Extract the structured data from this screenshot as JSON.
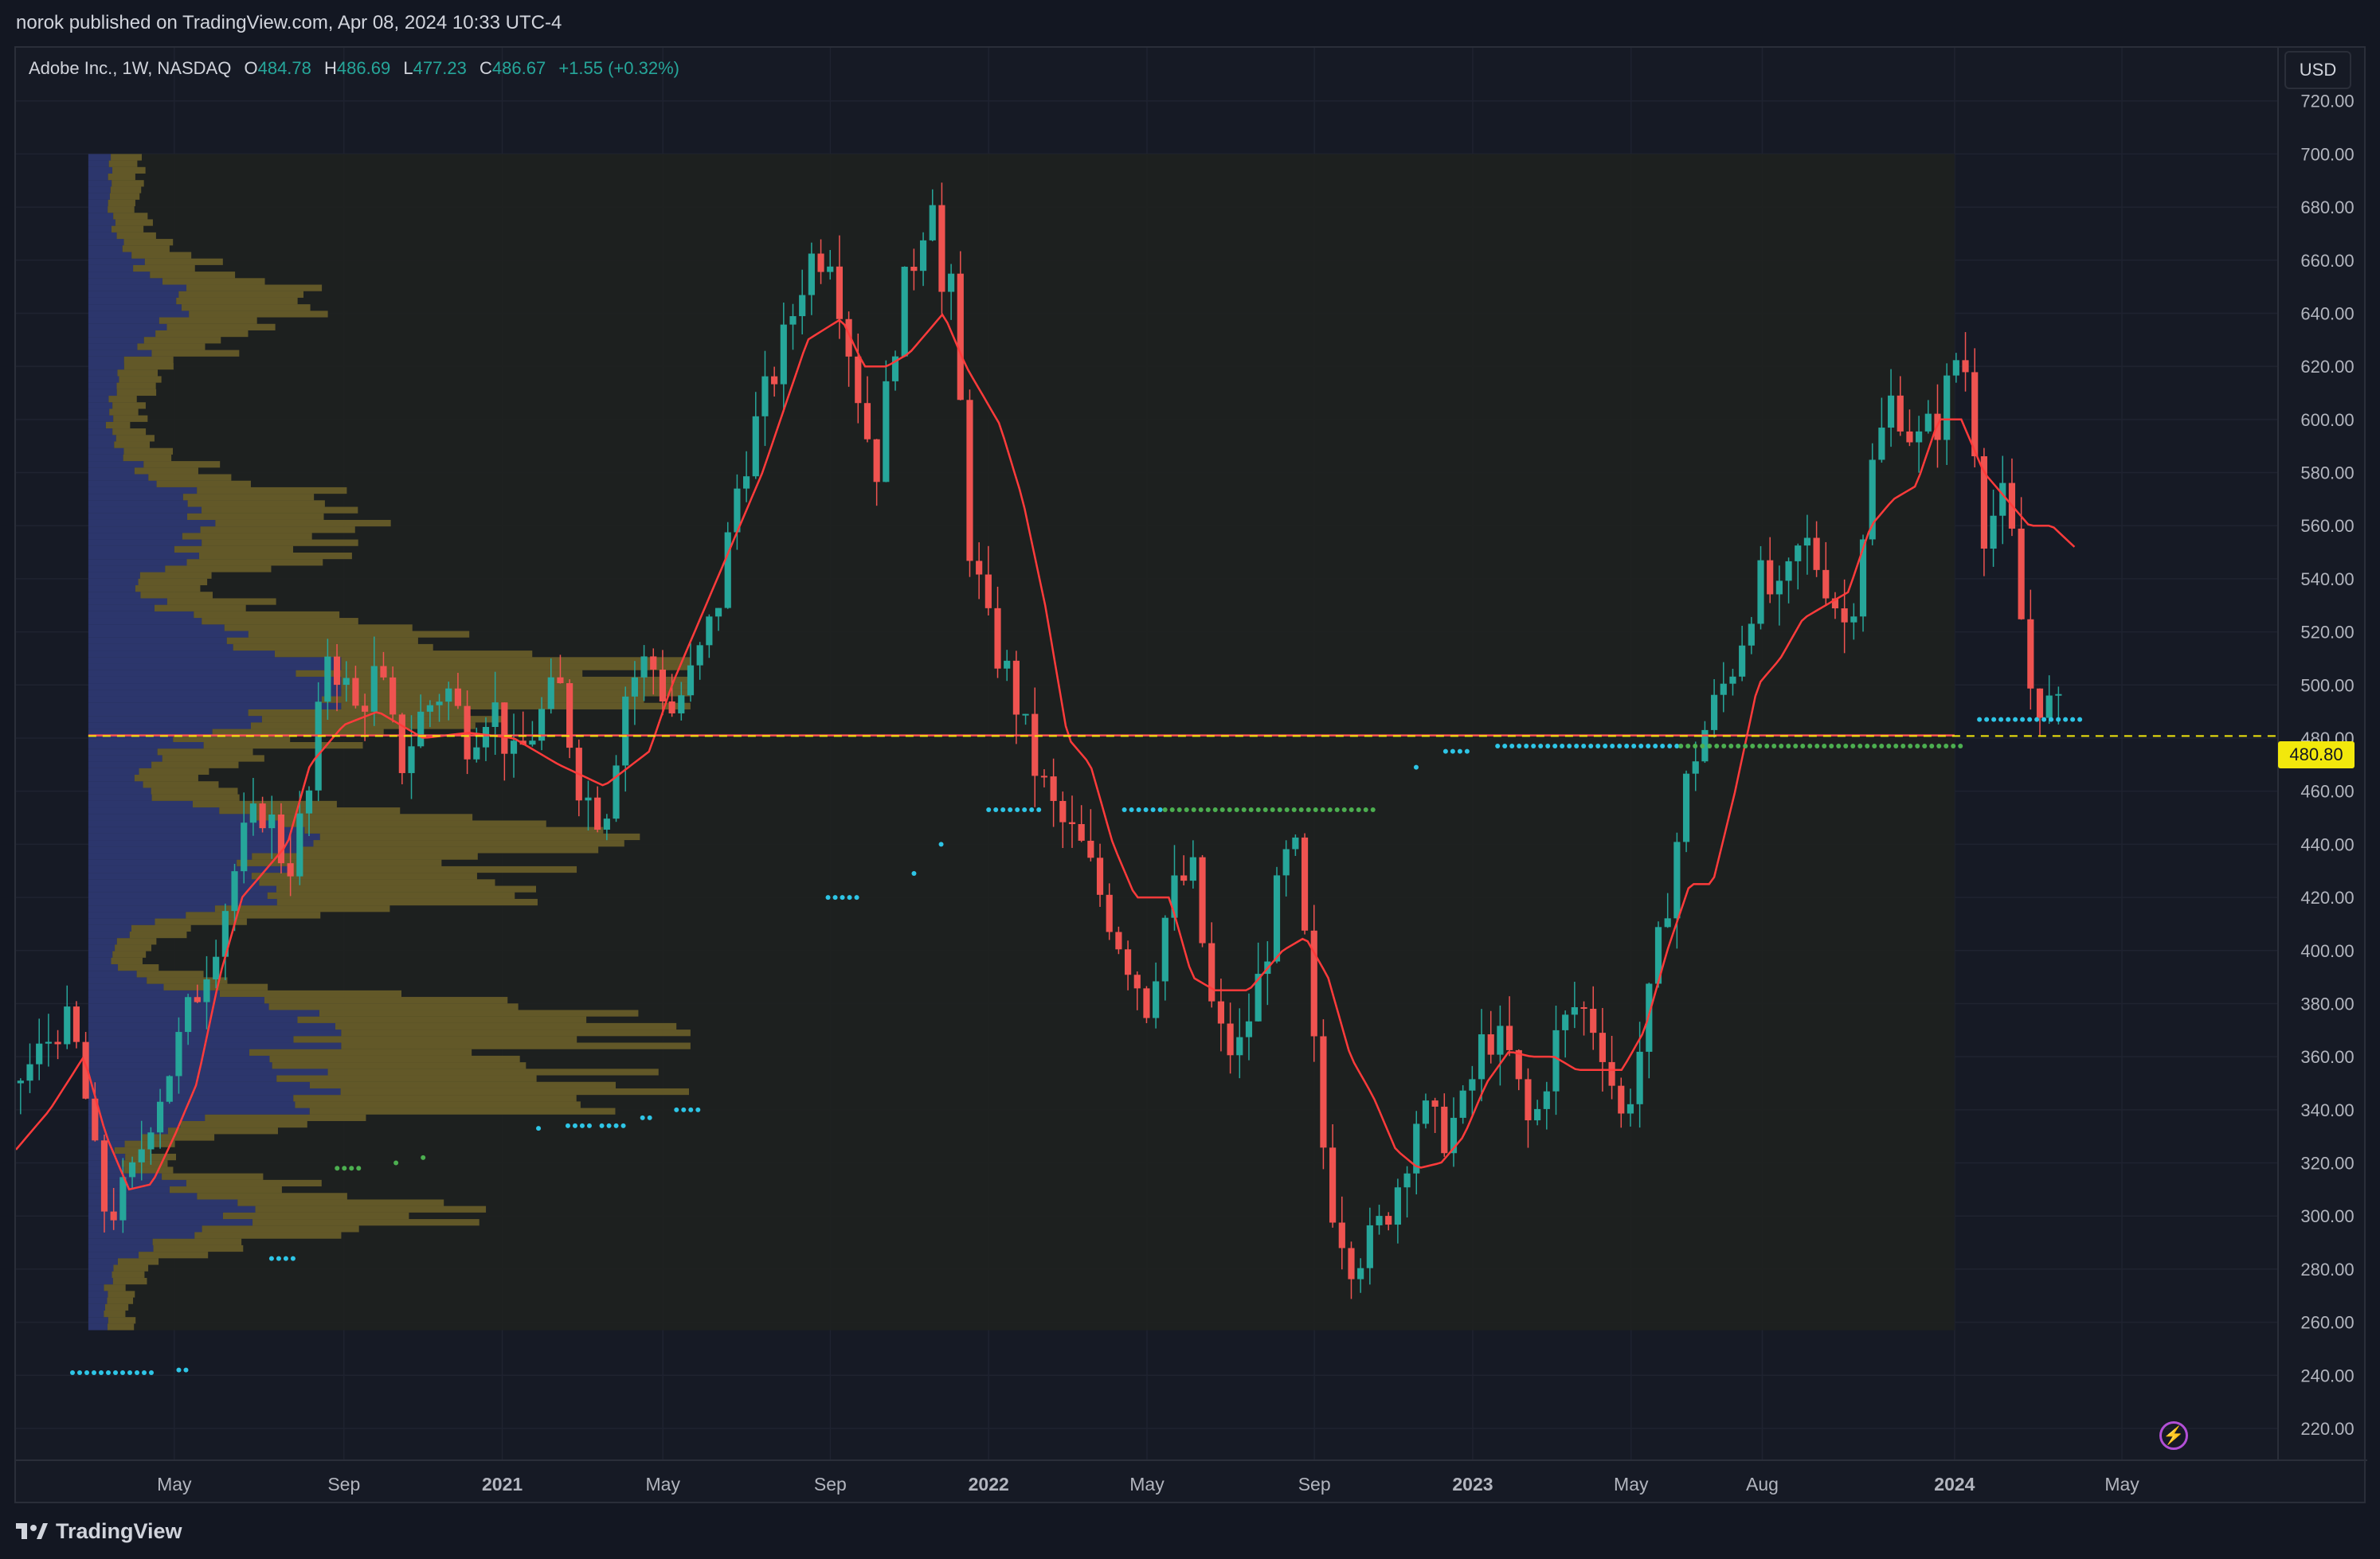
{
  "header": {
    "published_text": "norok published on TradingView.com, Apr 08, 2024 10:33 UTC-4"
  },
  "legend": {
    "symbol": "Adobe Inc., 1W, NASDAQ",
    "o_label": "O",
    "o_value": "484.78",
    "h_label": "H",
    "h_value": "486.69",
    "l_label": "L",
    "l_value": "477.23",
    "c_label": "C",
    "c_value": "486.67",
    "change": "+1.55 (+0.32%)"
  },
  "toolbar": {
    "currency": "USD"
  },
  "footer": {
    "brand": "TradingView"
  },
  "colors": {
    "up": "#26a69a",
    "down": "#ef5350",
    "ma": "#ff3b3b",
    "hline": "#ff5252",
    "dashed": "#f2e80c",
    "dots_cyan": "#2ec5e6",
    "dots_green": "#4caf50"
  },
  "chart_data": {
    "type": "candlestick",
    "title": "Adobe Inc., 1W, NASDAQ",
    "current_price_label": "480.80",
    "current_price": 480.8,
    "horizontal_level": 481,
    "ylim": [
      208,
      740
    ],
    "y_ticks": [
      "220.00",
      "240.00",
      "260.00",
      "280.00",
      "300.00",
      "320.00",
      "340.00",
      "360.00",
      "380.00",
      "400.00",
      "420.00",
      "440.00",
      "460.00",
      "480.00",
      "500.00",
      "520.00",
      "540.00",
      "560.00",
      "580.00",
      "600.00",
      "620.00",
      "640.00",
      "660.00",
      "680.00",
      "700.00",
      "720.00"
    ],
    "x_ticks": [
      {
        "label": "May",
        "t": 0.07
      },
      {
        "label": "Sep",
        "t": 0.145
      },
      {
        "label": "2021",
        "t": 0.215
      },
      {
        "label": "May",
        "t": 0.286
      },
      {
        "label": "Sep",
        "t": 0.36
      },
      {
        "label": "2022",
        "t": 0.43
      },
      {
        "label": "May",
        "t": 0.5
      },
      {
        "label": "Sep",
        "t": 0.574
      },
      {
        "label": "2023",
        "t": 0.644
      },
      {
        "label": "May",
        "t": 0.714
      },
      {
        "label": "Aug",
        "t": 0.772
      },
      {
        "label": "2024",
        "t": 0.857
      },
      {
        "label": "May",
        "t": 0.931
      }
    ],
    "profile_range": [
      257,
      700
    ],
    "close_waypoints": [
      [
        0.0,
        350
      ],
      [
        0.01,
        360
      ],
      [
        0.02,
        375
      ],
      [
        0.028,
        360
      ],
      [
        0.035,
        320
      ],
      [
        0.04,
        300
      ],
      [
        0.05,
        310
      ],
      [
        0.06,
        340
      ],
      [
        0.07,
        360
      ],
      [
        0.08,
        385
      ],
      [
        0.09,
        410
      ],
      [
        0.1,
        440
      ],
      [
        0.11,
        455
      ],
      [
        0.12,
        430
      ],
      [
        0.13,
        460
      ],
      [
        0.138,
        515
      ],
      [
        0.15,
        490
      ],
      [
        0.16,
        505
      ],
      [
        0.17,
        470
      ],
      [
        0.18,
        490
      ],
      [
        0.19,
        500
      ],
      [
        0.2,
        480
      ],
      [
        0.21,
        495
      ],
      [
        0.22,
        470
      ],
      [
        0.23,
        485
      ],
      [
        0.24,
        500
      ],
      [
        0.25,
        460
      ],
      [
        0.26,
        450
      ],
      [
        0.27,
        500
      ],
      [
        0.28,
        510
      ],
      [
        0.29,
        490
      ],
      [
        0.3,
        505
      ],
      [
        0.31,
        530
      ],
      [
        0.32,
        580
      ],
      [
        0.33,
        605
      ],
      [
        0.34,
        630
      ],
      [
        0.35,
        660
      ],
      [
        0.36,
        665
      ],
      [
        0.37,
        620
      ],
      [
        0.38,
        580
      ],
      [
        0.39,
        640
      ],
      [
        0.4,
        670
      ],
      [
        0.405,
        690
      ],
      [
        0.41,
        640
      ],
      [
        0.415,
        650
      ],
      [
        0.42,
        560
      ],
      [
        0.43,
        520
      ],
      [
        0.44,
        500
      ],
      [
        0.45,
        470
      ],
      [
        0.46,
        450
      ],
      [
        0.47,
        440
      ],
      [
        0.48,
        420
      ],
      [
        0.49,
        400
      ],
      [
        0.5,
        380
      ],
      [
        0.51,
        420
      ],
      [
        0.52,
        430
      ],
      [
        0.53,
        370
      ],
      [
        0.54,
        360
      ],
      [
        0.55,
        390
      ],
      [
        0.56,
        430
      ],
      [
        0.565,
        440
      ],
      [
        0.57,
        400
      ],
      [
        0.575,
        350
      ],
      [
        0.58,
        310
      ],
      [
        0.59,
        285
      ],
      [
        0.6,
        290
      ],
      [
        0.61,
        310
      ],
      [
        0.62,
        340
      ],
      [
        0.63,
        330
      ],
      [
        0.64,
        340
      ],
      [
        0.65,
        370
      ],
      [
        0.66,
        360
      ],
      [
        0.67,
        330
      ],
      [
        0.68,
        365
      ],
      [
        0.69,
        380
      ],
      [
        0.7,
        370
      ],
      [
        0.71,
        335
      ],
      [
        0.72,
        370
      ],
      [
        0.73,
        420
      ],
      [
        0.74,
        470
      ],
      [
        0.75,
        490
      ],
      [
        0.76,
        510
      ],
      [
        0.77,
        540
      ],
      [
        0.78,
        530
      ],
      [
        0.79,
        555
      ],
      [
        0.8,
        540
      ],
      [
        0.81,
        520
      ],
      [
        0.82,
        580
      ],
      [
        0.83,
        610
      ],
      [
        0.84,
        590
      ],
      [
        0.85,
        600
      ],
      [
        0.86,
        630
      ],
      [
        0.865,
        600
      ],
      [
        0.87,
        560
      ],
      [
        0.88,
        570
      ],
      [
        0.89,
        500
      ],
      [
        0.9,
        490
      ],
      [
        0.905,
        487
      ]
    ],
    "ma_waypoints": [
      [
        0.0,
        325
      ],
      [
        0.015,
        340
      ],
      [
        0.03,
        360
      ],
      [
        0.04,
        330
      ],
      [
        0.05,
        310
      ],
      [
        0.06,
        312
      ],
      [
        0.07,
        330
      ],
      [
        0.08,
        350
      ],
      [
        0.09,
        390
      ],
      [
        0.1,
        420
      ],
      [
        0.12,
        440
      ],
      [
        0.13,
        470
      ],
      [
        0.145,
        485
      ],
      [
        0.16,
        490
      ],
      [
        0.18,
        480
      ],
      [
        0.2,
        482
      ],
      [
        0.22,
        480
      ],
      [
        0.24,
        470
      ],
      [
        0.26,
        462
      ],
      [
        0.28,
        475
      ],
      [
        0.29,
        500
      ],
      [
        0.31,
        540
      ],
      [
        0.33,
        580
      ],
      [
        0.35,
        630
      ],
      [
        0.365,
        638
      ],
      [
        0.375,
        620
      ],
      [
        0.385,
        620
      ],
      [
        0.395,
        625
      ],
      [
        0.41,
        640
      ],
      [
        0.42,
        620
      ],
      [
        0.435,
        598
      ],
      [
        0.445,
        570
      ],
      [
        0.455,
        530
      ],
      [
        0.465,
        480
      ],
      [
        0.475,
        470
      ],
      [
        0.485,
        440
      ],
      [
        0.495,
        420
      ],
      [
        0.51,
        420
      ],
      [
        0.52,
        390
      ],
      [
        0.53,
        385
      ],
      [
        0.545,
        385
      ],
      [
        0.56,
        400
      ],
      [
        0.57,
        405
      ],
      [
        0.58,
        390
      ],
      [
        0.59,
        360
      ],
      [
        0.6,
        345
      ],
      [
        0.61,
        325
      ],
      [
        0.62,
        318
      ],
      [
        0.63,
        320
      ],
      [
        0.64,
        330
      ],
      [
        0.65,
        350
      ],
      [
        0.66,
        362
      ],
      [
        0.67,
        360
      ],
      [
        0.68,
        360
      ],
      [
        0.69,
        355
      ],
      [
        0.7,
        355
      ],
      [
        0.71,
        355
      ],
      [
        0.72,
        370
      ],
      [
        0.73,
        400
      ],
      [
        0.74,
        425
      ],
      [
        0.75,
        425
      ],
      [
        0.76,
        460
      ],
      [
        0.77,
        500
      ],
      [
        0.78,
        510
      ],
      [
        0.79,
        525
      ],
      [
        0.8,
        530
      ],
      [
        0.81,
        535
      ],
      [
        0.82,
        560
      ],
      [
        0.83,
        570
      ],
      [
        0.84,
        575
      ],
      [
        0.85,
        600
      ],
      [
        0.86,
        600
      ],
      [
        0.87,
        580
      ],
      [
        0.88,
        570
      ],
      [
        0.89,
        560
      ],
      [
        0.9,
        560
      ],
      [
        0.91,
        552
      ]
    ],
    "dot_rows": [
      {
        "color": "cyan",
        "y": 241,
        "from": 0.025,
        "to": 0.062
      },
      {
        "color": "cyan",
        "y": 242,
        "from": 0.072,
        "to": 0.078
      },
      {
        "color": "cyan",
        "y": 284,
        "from": 0.113,
        "to": 0.125
      },
      {
        "color": "green",
        "y": 318,
        "from": 0.142,
        "to": 0.152
      },
      {
        "color": "green",
        "y": 320,
        "from": 0.168,
        "to": 0.17
      },
      {
        "color": "green",
        "y": 322,
        "from": 0.18,
        "to": 0.182
      },
      {
        "color": "cyan",
        "y": 333,
        "from": 0.231,
        "to": 0.233
      },
      {
        "color": "cyan",
        "y": 334,
        "from": 0.244,
        "to": 0.255
      },
      {
        "color": "cyan",
        "y": 334,
        "from": 0.259,
        "to": 0.27
      },
      {
        "color": "cyan",
        "y": 337,
        "from": 0.277,
        "to": 0.282
      },
      {
        "color": "cyan",
        "y": 340,
        "from": 0.292,
        "to": 0.302
      },
      {
        "color": "cyan",
        "y": 420,
        "from": 0.359,
        "to": 0.372
      },
      {
        "color": "cyan",
        "y": 429,
        "from": 0.397,
        "to": 0.399
      },
      {
        "color": "cyan",
        "y": 440,
        "from": 0.409,
        "to": 0.411
      },
      {
        "color": "cyan",
        "y": 453,
        "from": 0.43,
        "to": 0.455
      },
      {
        "color": "cyan",
        "y": 453,
        "from": 0.49,
        "to": 0.507
      },
      {
        "color": "green",
        "y": 453,
        "from": 0.508,
        "to": 0.6
      },
      {
        "color": "cyan",
        "y": 469,
        "from": 0.619,
        "to": 0.621
      },
      {
        "color": "cyan",
        "y": 475,
        "from": 0.632,
        "to": 0.642
      },
      {
        "color": "cyan",
        "y": 477,
        "from": 0.655,
        "to": 0.735
      },
      {
        "color": "green",
        "y": 477,
        "from": 0.736,
        "to": 0.862
      },
      {
        "color": "cyan",
        "y": 487,
        "from": 0.868,
        "to": 0.915
      }
    ]
  }
}
